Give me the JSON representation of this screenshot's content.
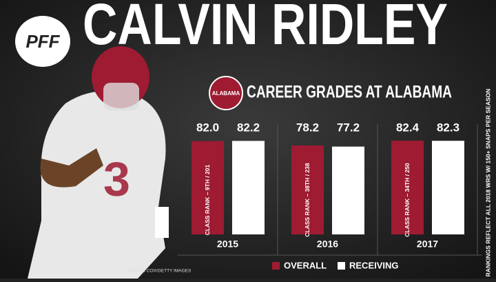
{
  "chart_data": {
    "type": "bar",
    "brand": "PFF",
    "title": "CALVIN RIDLEY",
    "subtitle": "CAREER GRADES AT ALABAMA",
    "logo_text": "ALABAMA",
    "categories": [
      "2015",
      "2016",
      "2017"
    ],
    "series": [
      {
        "name": "OVERALL",
        "color": "#9e1b32",
        "values": [
          82.0,
          78.2,
          82.4
        ],
        "value_labels": [
          "82.0",
          "78.2",
          "82.4"
        ],
        "bar_labels": [
          "CLASS RANK – 9TH / 201",
          "CLASS RANK – 38TH / 238",
          "CLASS RANK – 34TH / 250"
        ]
      },
      {
        "name": "RECEIVING",
        "color": "#ffffff",
        "values": [
          82.2,
          77.2,
          82.3
        ],
        "value_labels": [
          "82.2",
          "77.2",
          "82.3"
        ]
      }
    ],
    "side_note": "RANKINGS REFLECT ALL 2018 WRS W/ 150+ SNAPS PER SEASON",
    "credit": "KEVIN C COX/GETTY IMAGES"
  }
}
